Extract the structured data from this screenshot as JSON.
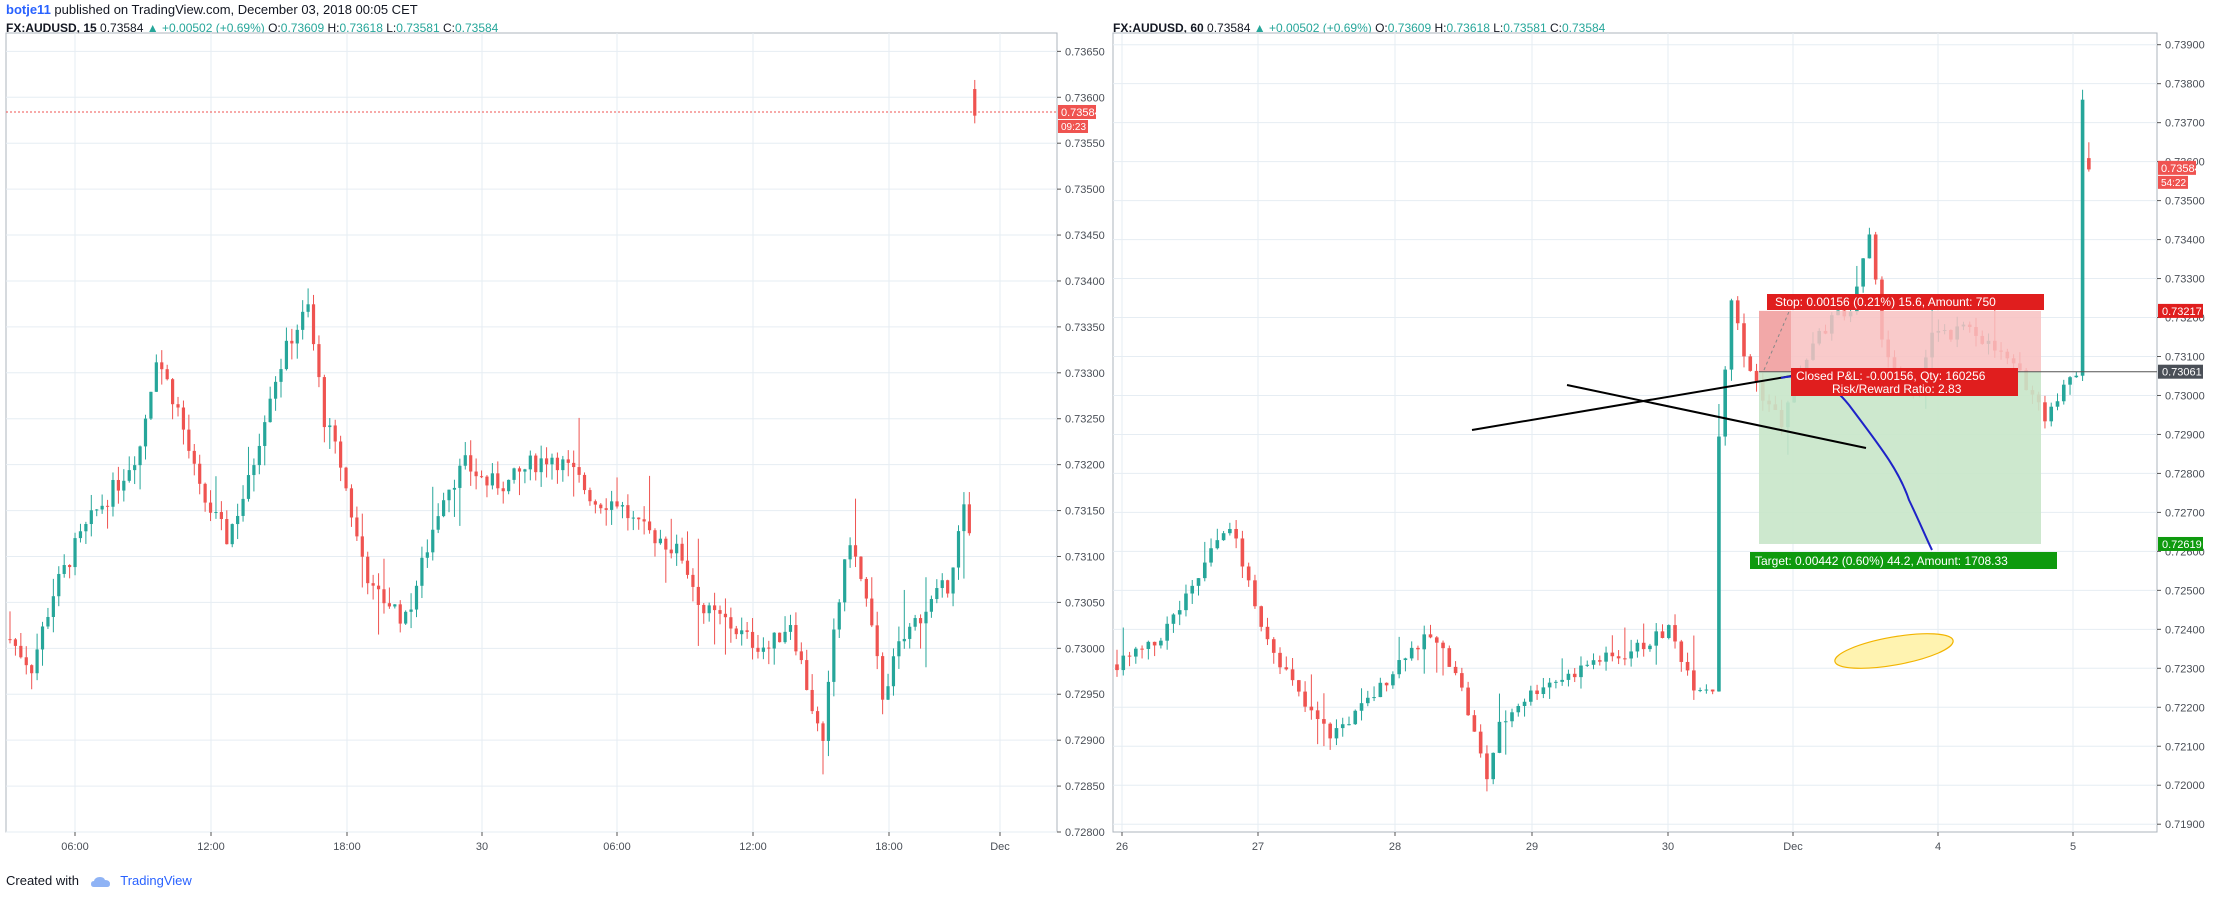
{
  "header": {
    "author": "botje11",
    "published_text": "published on TradingView.com, December 03, 2018 00:05 CET"
  },
  "footer": {
    "created_with": "Created with",
    "brand": "TradingView"
  },
  "colors": {
    "up": "#26a69a",
    "down": "#ef5350",
    "price_line": "#ef5350",
    "grid": "#e6edf3",
    "stop_zone": "#f8c1c1",
    "target_zone": "#c8e6c9",
    "forecast_path": "#1e22c8",
    "ellipse_fill": "#fff3b0",
    "ellipse_stroke": "#f2b400"
  },
  "chart_data": [
    {
      "type": "candlestick",
      "symbol": "FX:AUDUSD",
      "interval": "15",
      "header": {
        "symbol": "FX:AUDUSD, 15",
        "last": "0.73584",
        "change": "+0.00502 (+0.69%)",
        "open": "0.73609",
        "high": "0.73618",
        "low": "0.73581",
        "close": "0.73584"
      },
      "ylim": [
        0.728,
        0.7367
      ],
      "y_ticks": [
        "0.73650",
        "0.73600",
        "0.73550",
        "0.73500",
        "0.73450",
        "0.73400",
        "0.73350",
        "0.73300",
        "0.73250",
        "0.73200",
        "0.73150",
        "0.73100",
        "0.73050",
        "0.73000",
        "0.72950",
        "0.72900",
        "0.72850",
        "0.72800"
      ],
      "x_ticks": [
        "06:00",
        "12:00",
        "18:00",
        "30",
        "06:00",
        "12:00",
        "18:00",
        "Dec"
      ],
      "last_price_label": "0.73584",
      "countdown_label": "09:23",
      "close_path": [
        [
          0,
          0.7301
        ],
        [
          4,
          0.7298
        ],
        [
          8,
          0.7306
        ],
        [
          12,
          0.7311
        ],
        [
          16,
          0.7315
        ],
        [
          20,
          0.7318
        ],
        [
          24,
          0.7322
        ],
        [
          27,
          0.7332
        ],
        [
          31,
          0.7326
        ],
        [
          35,
          0.7317
        ],
        [
          40,
          0.7312
        ],
        [
          44,
          0.7318
        ],
        [
          48,
          0.7328
        ],
        [
          52,
          0.7334
        ],
        [
          55,
          0.7337
        ],
        [
          58,
          0.7325
        ],
        [
          61,
          0.732
        ],
        [
          64,
          0.7312
        ],
        [
          67,
          0.7306
        ],
        [
          70,
          0.7305
        ],
        [
          73,
          0.7303
        ],
        [
          76,
          0.7309
        ],
        [
          80,
          0.7317
        ],
        [
          84,
          0.732
        ],
        [
          88,
          0.7318
        ],
        [
          92,
          0.7318
        ],
        [
          96,
          0.732
        ],
        [
          100,
          0.7321
        ],
        [
          104,
          0.7319
        ],
        [
          108,
          0.7316
        ],
        [
          112,
          0.7316
        ],
        [
          116,
          0.7313
        ],
        [
          120,
          0.7312
        ],
        [
          124,
          0.731
        ],
        [
          128,
          0.7304
        ],
        [
          132,
          0.7303
        ],
        [
          136,
          0.7301
        ],
        [
          140,
          0.73
        ],
        [
          144,
          0.7303
        ],
        [
          147,
          0.7296
        ],
        [
          150,
          0.7289
        ],
        [
          152,
          0.7302
        ],
        [
          155,
          0.7312
        ],
        [
          158,
          0.7305
        ],
        [
          161,
          0.7295
        ],
        [
          164,
          0.73
        ],
        [
          167,
          0.7303
        ],
        [
          170,
          0.7305
        ],
        [
          173,
          0.7307
        ],
        [
          176,
          0.7315
        ],
        [
          177,
          0.7312
        ],
        [
          178,
          0.7358
        ]
      ]
    },
    {
      "type": "candlestick",
      "symbol": "FX:AUDUSD",
      "interval": "60",
      "header": {
        "symbol": "FX:AUDUSD, 60",
        "last": "0.73584",
        "change": "+0.00502 (+0.69%)",
        "open": "0.73609",
        "high": "0.73618",
        "low": "0.73581",
        "close": "0.73584"
      },
      "ylim": [
        0.7188,
        0.7393
      ],
      "y_ticks": [
        "0.73900",
        "0.73800",
        "0.73700",
        "0.73600",
        "0.73500",
        "0.73400",
        "0.73300",
        "0.73200",
        "0.73100",
        "0.73000",
        "0.72900",
        "0.72800",
        "0.72700",
        "0.72600",
        "0.72500",
        "0.72400",
        "0.72300",
        "0.72200",
        "0.72100",
        "0.72000",
        "0.71900"
      ],
      "x_ticks": [
        "26",
        "27",
        "28",
        "29",
        "30",
        "Dec",
        "4",
        "5"
      ],
      "last_price_label": "0.73584",
      "countdown_label": "54:22",
      "close_path": [
        [
          0,
          0.7231
        ],
        [
          6,
          0.7236
        ],
        [
          12,
          0.725
        ],
        [
          17,
          0.7266
        ],
        [
          19,
          0.7263
        ],
        [
          22,
          0.7245
        ],
        [
          26,
          0.7232
        ],
        [
          30,
          0.722
        ],
        [
          34,
          0.7213
        ],
        [
          38,
          0.7218
        ],
        [
          42,
          0.7225
        ],
        [
          46,
          0.7234
        ],
        [
          50,
          0.7238
        ],
        [
          54,
          0.723
        ],
        [
          57,
          0.7213
        ],
        [
          59,
          0.7202
        ],
        [
          61,
          0.7215
        ],
        [
          64,
          0.7221
        ],
        [
          68,
          0.7226
        ],
        [
          72,
          0.7228
        ],
        [
          76,
          0.7232
        ],
        [
          80,
          0.7233
        ],
        [
          84,
          0.7236
        ],
        [
          88,
          0.724
        ],
        [
          92,
          0.7226
        ],
        [
          95,
          0.7225
        ],
        [
          96,
          0.729
        ],
        [
          98,
          0.7325
        ],
        [
          100,
          0.731
        ],
        [
          103,
          0.73
        ],
        [
          106,
          0.7293
        ],
        [
          110,
          0.731
        ],
        [
          114,
          0.732
        ],
        [
          117,
          0.7322
        ],
        [
          120,
          0.734
        ],
        [
          122,
          0.7316
        ],
        [
          124,
          0.7305
        ],
        [
          127,
          0.73
        ],
        [
          130,
          0.7316
        ],
        [
          133,
          0.7315
        ],
        [
          136,
          0.7318
        ],
        [
          139,
          0.7313
        ],
        [
          142,
          0.7309
        ],
        [
          145,
          0.7303
        ],
        [
          148,
          0.7295
        ],
        [
          150,
          0.73
        ],
        [
          153,
          0.7306
        ],
        [
          154,
          0.7377
        ],
        [
          155,
          0.7358
        ]
      ],
      "position": {
        "stop_label": "Stop: 0.00156 (0.21%) 15.6, Amount: 750",
        "pnl_label": "Closed P&L: -0.00156, Qty: 160256",
        "rr_label": "Risk/Reward Ratio: 2.83",
        "target_label": "Target: 0.00442 (0.60%) 44.2, Amount: 1708.33",
        "stop_price": "0.73217",
        "entry_price": "0.73061",
        "target_price": "0.72619"
      }
    }
  ]
}
